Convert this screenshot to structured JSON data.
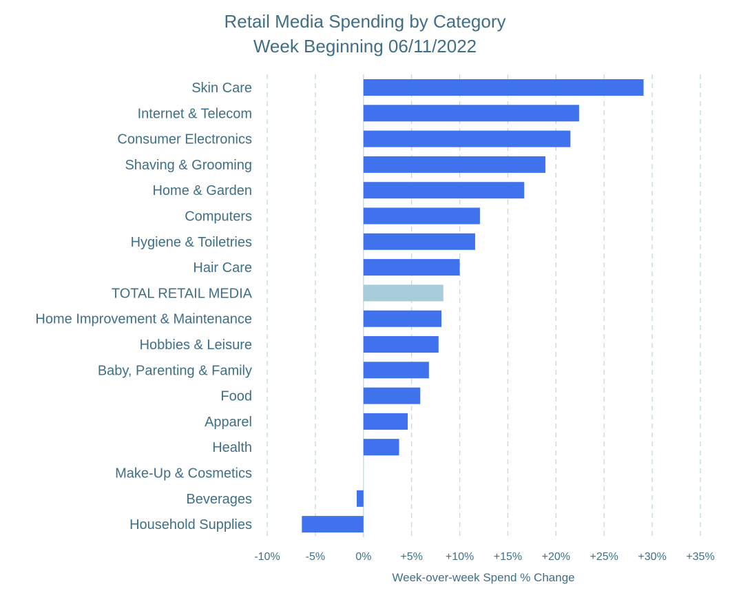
{
  "chart_data": {
    "type": "bar",
    "orientation": "horizontal",
    "title": "Retail Media Spending by Category",
    "subtitle": "Week Beginning 06/11/2022",
    "xlabel": "Week-over-week Spend % Change",
    "ylabel": "",
    "xlim": [
      -10,
      35
    ],
    "xticks": [
      -10,
      -5,
      0,
      5,
      10,
      15,
      20,
      25,
      30,
      35
    ],
    "xtick_labels": [
      "-10%",
      "-5%",
      "0%",
      "+5%",
      "+10%",
      "+15%",
      "+20%",
      "+25%",
      "+30%",
      "+35%"
    ],
    "grid": "vertical-dashed",
    "categories": [
      "Skin Care",
      "Internet & Telecom",
      "Consumer Electronics",
      "Shaving & Grooming",
      "Home & Garden",
      "Computers",
      "Hygiene & Toiletries",
      "Hair Care",
      "TOTAL RETAIL MEDIA",
      "Home Improvement & Maintenance",
      "Hobbies & Leisure",
      "Baby, Parenting & Family",
      "Food",
      "Apparel",
      "Health",
      "Make-Up & Cosmetics",
      "Beverages",
      "Household Supplies"
    ],
    "values": [
      29.1,
      22.4,
      21.5,
      18.9,
      16.7,
      12.1,
      11.6,
      10.0,
      8.3,
      8.1,
      7.8,
      6.8,
      5.9,
      4.6,
      3.7,
      0.0,
      -0.7,
      -6.4
    ],
    "highlight_category": "TOTAL RETAIL MEDIA",
    "colors": {
      "bar": "#4072ee",
      "highlight_bar": "#a7ccda",
      "text": "#3f6f86",
      "grid": "#b7dbe0"
    }
  }
}
